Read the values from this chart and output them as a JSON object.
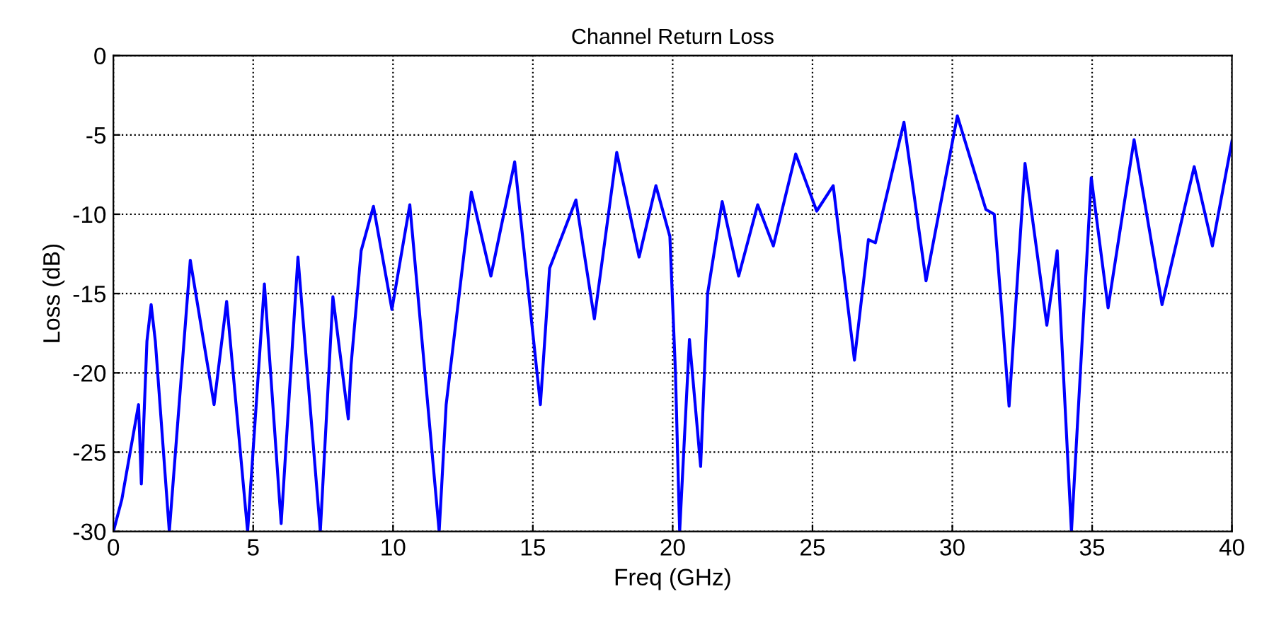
{
  "chart_data": {
    "type": "line",
    "title": "Channel Return Loss",
    "xlabel": "Freq (GHz)",
    "ylabel": "Loss (dB)",
    "xlim": [
      0,
      40
    ],
    "ylim": [
      -30,
      0
    ],
    "xticks": [
      0,
      5,
      10,
      15,
      20,
      25,
      30,
      35,
      40
    ],
    "yticks": [
      -30,
      -25,
      -20,
      -15,
      -10,
      -5,
      0
    ],
    "grid": true,
    "line_style": "solid",
    "marker": "none",
    "series": [
      {
        "color": "#0000ff",
        "x": [
          0,
          0.3,
          0.6,
          0.9,
          1.0,
          1.2,
          1.35,
          1.5,
          2.0,
          2.75,
          3.6,
          4.05,
          4.8,
          5.4,
          6.0,
          6.6,
          7.4,
          7.85,
          8.4,
          8.5,
          8.86,
          9.3,
          9.96,
          10.6,
          11.65,
          11.9,
          12.8,
          13.5,
          14.35,
          15.27,
          15.6,
          16.54,
          17.2,
          18.0,
          18.8,
          19.4,
          19.9,
          20.1,
          20.25,
          20.6,
          21.0,
          21.25,
          21.77,
          22.36,
          23.04,
          23.6,
          24.4,
          25.15,
          25.74,
          26.5,
          27.0,
          27.25,
          28.27,
          29.06,
          30.18,
          31.2,
          31.5,
          32.03,
          32.6,
          33.38,
          33.75,
          34.26,
          34.97,
          35.57,
          36.5,
          37.5,
          38.65,
          39.3,
          40
        ],
        "values": [
          -30,
          -28,
          -25,
          -22,
          -27,
          -18,
          -15.7,
          -18,
          -30,
          -12.9,
          -22,
          -15.5,
          -30,
          -14.4,
          -29.5,
          -12.7,
          -30,
          -15.2,
          -22.9,
          -19.5,
          -12.3,
          -9.5,
          -16,
          -9.4,
          -30,
          -22,
          -8.6,
          -13.9,
          -6.7,
          -22,
          -13.4,
          -9.1,
          -16.6,
          -6.1,
          -12.7,
          -8.2,
          -11.4,
          -20,
          -30,
          -17.9,
          -25.9,
          -15,
          -9.2,
          -13.9,
          -9.4,
          -12,
          -6.2,
          -9.8,
          -8.2,
          -19.2,
          -11.6,
          -11.8,
          -4.2,
          -14.2,
          -3.8,
          -9.7,
          -10,
          -22.1,
          -6.8,
          -17,
          -12.3,
          -30,
          -7.7,
          -15.9,
          -5.3,
          -15.7,
          -7,
          -12,
          -5.4
        ]
      }
    ]
  }
}
